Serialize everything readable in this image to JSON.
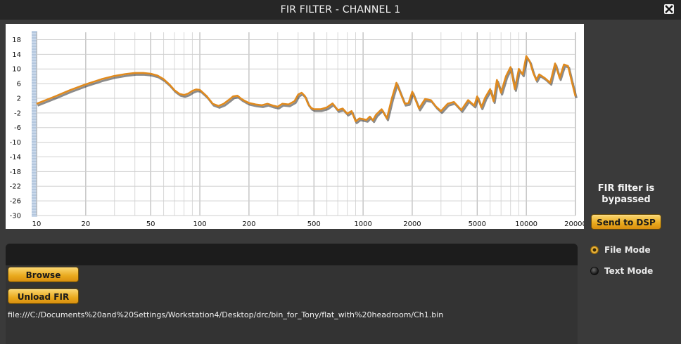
{
  "window": {
    "title": "FIR FILTER - CHANNEL 1",
    "close_icon": "close-icon"
  },
  "chart_data": {
    "type": "line",
    "xscale": "log",
    "xlim": [
      10,
      20000
    ],
    "ylim": [
      -30,
      20
    ],
    "x_ticks": [
      "10",
      "20",
      "50",
      "100",
      "200",
      "500",
      "1000",
      "2000",
      "5000",
      "10000",
      "20000"
    ],
    "y_ticks": [
      "18",
      "14",
      "10",
      "6",
      "2",
      "-2",
      "-6",
      "-10",
      "-14",
      "-18",
      "-22",
      "-26",
      "-30"
    ],
    "grid": true,
    "series": [
      {
        "color": "#e08a1e",
        "x": [
          10,
          13,
          16,
          20,
          25,
          30,
          35,
          40,
          45,
          50,
          55,
          60,
          65,
          70,
          75,
          80,
          85,
          90,
          95,
          100,
          110,
          120,
          130,
          140,
          150,
          160,
          170,
          180,
          190,
          200,
          220,
          240,
          260,
          280,
          300,
          320,
          350,
          380,
          400,
          420,
          440,
          460,
          480,
          500,
          550,
          600,
          650,
          700,
          750,
          800,
          850,
          900,
          950,
          1000,
          1050,
          1100,
          1150,
          1200,
          1300,
          1400,
          1500,
          1600,
          1700,
          1800,
          1900,
          2000,
          2200,
          2400,
          2600,
          2800,
          3000,
          3300,
          3600,
          4000,
          4400,
          4800,
          5000,
          5300,
          5600,
          6000,
          6300,
          6600,
          7000,
          7500,
          8000,
          8500,
          9000,
          9500,
          10000,
          10500,
          11000,
          11500,
          12000,
          13000,
          14000,
          15000,
          16000,
          17000,
          18000,
          19000,
          20000
        ],
        "y": [
          0.5,
          2.5,
          4.2,
          5.8,
          7.2,
          8.1,
          8.6,
          8.9,
          8.9,
          8.7,
          8.2,
          7.2,
          5.8,
          4.2,
          3.2,
          2.9,
          3.3,
          4.0,
          4.4,
          4.3,
          2.6,
          0.5,
          -0.1,
          0.5,
          1.5,
          2.5,
          2.7,
          1.8,
          1.2,
          0.7,
          0.3,
          0.1,
          0.5,
          0.0,
          -0.3,
          0.5,
          0.3,
          1.2,
          3.0,
          3.5,
          2.6,
          0.5,
          -0.6,
          -1.0,
          -1.0,
          -0.5,
          0.6,
          -1.2,
          -0.8,
          -2.2,
          -1.5,
          -4.3,
          -3.5,
          -3.7,
          -3.9,
          -3.0,
          -4.0,
          -2.5,
          -1.0,
          -3.5,
          2.0,
          6.2,
          3.2,
          0.5,
          0.7,
          3.8,
          -0.8,
          1.8,
          1.5,
          -0.3,
          -1.5,
          0.5,
          1.0,
          -1.2,
          1.5,
          0.0,
          2.5,
          -0.5,
          2.2,
          4.5,
          1.2,
          7.0,
          3.5,
          8.0,
          10.5,
          4.5,
          10.0,
          8.5,
          13.5,
          12.0,
          9.0,
          7.0,
          8.5,
          7.5,
          6.2,
          11.5,
          7.5,
          11.2,
          10.8,
          6.5,
          2.5
        ]
      }
    ]
  },
  "status": {
    "bypass_label": "FIR filter is bypassed"
  },
  "buttons": {
    "send_to_dsp": "Send to DSP",
    "browse": "Browse",
    "unload_fir": "Unload FIR"
  },
  "file": {
    "path": "file:///C:/Documents%20and%20Settings/Workstation4/Desktop/drc/bin_for_Tony/flat_with%20headroom/Ch1.bin"
  },
  "mode": {
    "options": [
      {
        "label": "File Mode",
        "selected": true
      },
      {
        "label": "Text Mode",
        "selected": false
      }
    ]
  }
}
